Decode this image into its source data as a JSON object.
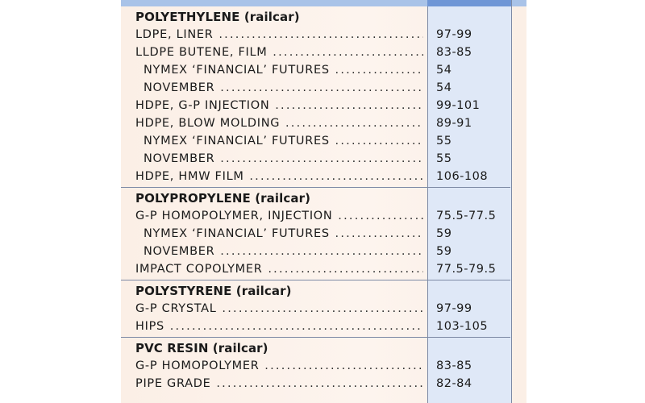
{
  "sections": [
    {
      "title": "POLYETHYLENE (railcar)",
      "rows": [
        {
          "name": "LDPE, LINER",
          "price": "97-99",
          "indent": false
        },
        {
          "name": "LLDPE BUTENE, FILM",
          "price": "83-85",
          "indent": false
        },
        {
          "name": "NYMEX ‘FINANCIAL’ FUTURES",
          "price": "54",
          "indent": true
        },
        {
          "name": "NOVEMBER",
          "price": "54",
          "indent": true
        },
        {
          "name": "HDPE, G-P INJECTION",
          "price": "99-101",
          "indent": false
        },
        {
          "name": "HDPE, BLOW MOLDING",
          "price": "89-91",
          "indent": false
        },
        {
          "name": "NYMEX ‘FINANCIAL’ FUTURES",
          "price": "55",
          "indent": true
        },
        {
          "name": "NOVEMBER",
          "price": "55",
          "indent": true
        },
        {
          "name": "HDPE, HMW FILM",
          "price": "106-108",
          "indent": false
        }
      ]
    },
    {
      "title": "POLYPROPYLENE (railcar)",
      "rows": [
        {
          "name": "G-P HOMOPOLYMER, INJECTION",
          "price": "75.5-77.5",
          "indent": false
        },
        {
          "name": "NYMEX ‘FINANCIAL’ FUTURES",
          "price": "59",
          "indent": true
        },
        {
          "name": "NOVEMBER",
          "price": "59",
          "indent": true
        },
        {
          "name": "IMPACT COPOLYMER",
          "price": "77.5-79.5",
          "indent": false
        }
      ]
    },
    {
      "title": "POLYSTYRENE (railcar)",
      "rows": [
        {
          "name": "G-P CRYSTAL",
          "price": "97-99",
          "indent": false
        },
        {
          "name": "HIPS",
          "price": "103-105",
          "indent": false
        }
      ]
    },
    {
      "title": "PVC RESIN (railcar)",
      "rows": [
        {
          "name": "G-P HOMOPOLYMER",
          "price": "83-85",
          "indent": false
        },
        {
          "name": "PIPE GRADE",
          "price": "82-84",
          "indent": false
        }
      ]
    }
  ],
  "colors": {
    "background": "#fdf4ee",
    "price_column": "#dfe8f7",
    "header_bar": "#a9c3e8",
    "header_bar_price": "#6f96d6",
    "rule": "#7d8aa5"
  }
}
